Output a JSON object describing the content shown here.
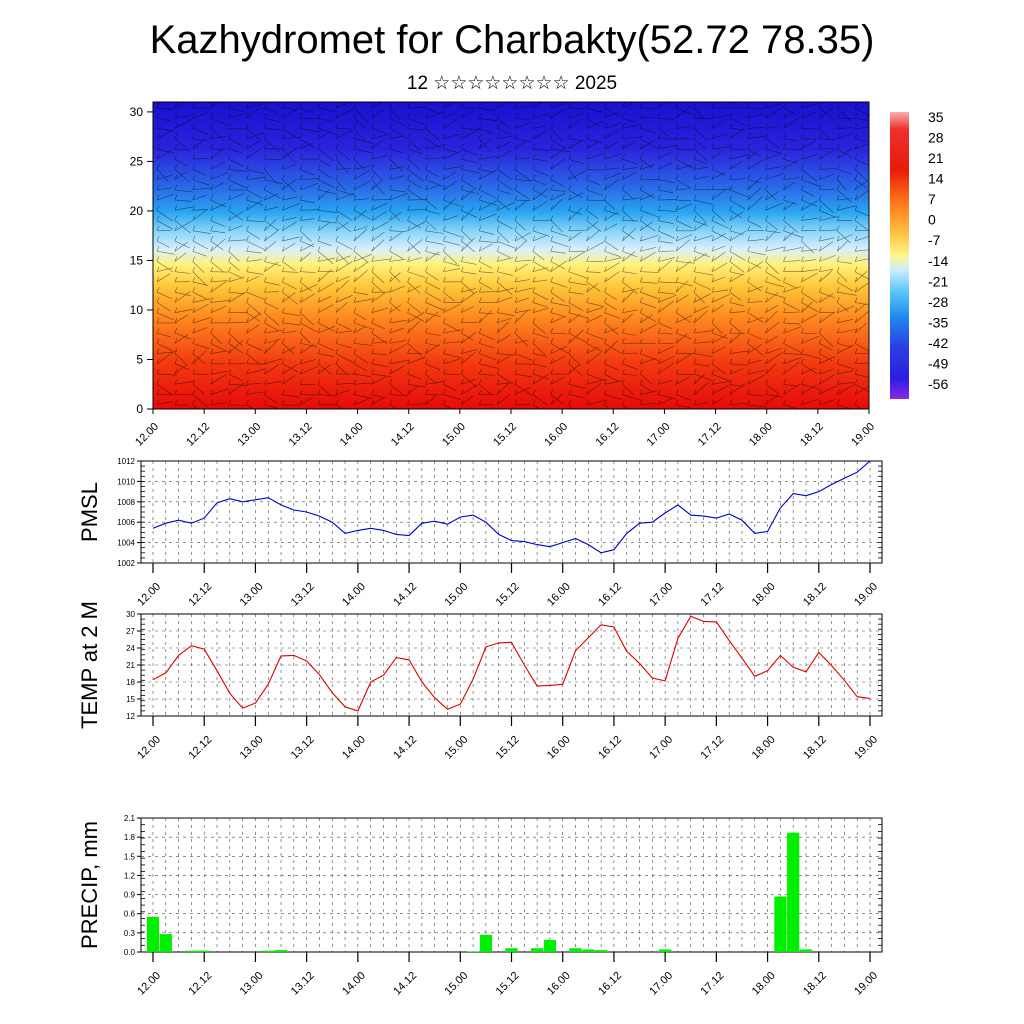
{
  "title": "Kazhydromet for Charbakty(52.72 78.35)",
  "subtitle": "12 ☆☆☆☆☆☆☆☆ 2025",
  "time_labels": [
    "12.00",
    "12.12",
    "13.00",
    "13.12",
    "14.00",
    "14.12",
    "15.00",
    "15.12",
    "16.00",
    "16.12",
    "17.00",
    "17.12",
    "18.00",
    "18.12",
    "19.00"
  ],
  "colors": {
    "pmsl_line": "#0000cc",
    "temp_line": "#dd0000",
    "precip_bar": "#00ee00",
    "cross_section_cold": "#2a10d8",
    "cross_section_warm": "#e8100a"
  },
  "chart_data": [
    {
      "type": "heatmap",
      "name": "cross-section",
      "y_ticks": [
        0,
        5,
        10,
        15,
        20,
        25,
        30
      ],
      "ylim": [
        0,
        31
      ],
      "colorbar_labels": [
        "35",
        "28",
        "21",
        "14",
        "7",
        "0",
        "-7",
        "-14",
        "-21",
        "-28",
        "-35",
        "-42",
        "-49",
        "-56"
      ],
      "note_overlay": "wind barbs"
    },
    {
      "type": "line",
      "name": "pmsl",
      "ylabel": "PMSL",
      "ylim": [
        1002,
        1012
      ],
      "y_ticks": [
        "1002",
        "1004",
        "1006",
        "1008",
        "1010",
        "1012"
      ],
      "x": [
        0,
        1,
        2,
        3,
        4,
        5,
        6,
        7,
        8,
        9,
        10,
        11,
        12,
        13,
        14,
        15,
        16,
        17,
        18,
        19,
        20,
        21,
        22,
        23,
        24,
        25,
        26,
        27,
        28,
        29,
        30,
        31,
        32,
        33,
        34,
        35,
        36,
        37,
        38,
        39,
        40,
        41,
        42,
        43,
        44,
        45,
        46,
        47,
        48,
        49,
        50,
        51,
        52,
        53,
        54,
        55,
        56
      ],
      "values": [
        1005.4,
        1005.9,
        1006.2,
        1005.9,
        1006.4,
        1007.9,
        1008.3,
        1008.0,
        1008.2,
        1008.4,
        1007.7,
        1007.2,
        1007.0,
        1006.6,
        1006.0,
        1004.9,
        1005.2,
        1005.4,
        1005.2,
        1004.8,
        1004.7,
        1005.9,
        1006.1,
        1005.8,
        1006.5,
        1006.7,
        1006.0,
        1004.8,
        1004.2,
        1004.1,
        1003.8,
        1003.6,
        1004.0,
        1004.4,
        1003.8,
        1003.0,
        1003.3,
        1004.9,
        1005.9,
        1006.0,
        1006.9,
        1007.7,
        1006.7,
        1006.6,
        1006.4,
        1006.8,
        1006.2,
        1004.9,
        1005.1,
        1007.4,
        1008.8,
        1008.6,
        1009.0,
        1009.7,
        1010.3,
        1010.9,
        1012.0
      ]
    },
    {
      "type": "line",
      "name": "temperature",
      "ylabel": "TEMP at 2 M",
      "ylim": [
        12,
        30
      ],
      "y_ticks": [
        "12",
        "15",
        "18",
        "21",
        "24",
        "27",
        "30"
      ],
      "x": [
        0,
        1,
        2,
        3,
        4,
        5,
        6,
        7,
        8,
        9,
        10,
        11,
        12,
        13,
        14,
        15,
        16,
        17,
        18,
        19,
        20,
        21,
        22,
        23,
        24,
        25,
        26,
        27,
        28,
        29,
        30,
        31,
        32,
        33,
        34,
        35,
        36,
        37,
        38,
        39,
        40,
        41,
        42,
        43,
        44,
        45,
        46,
        47,
        48,
        49,
        50,
        51,
        52,
        53,
        54,
        55,
        56
      ],
      "values": [
        18.4,
        19.6,
        22.7,
        24.4,
        23.8,
        20.0,
        16.0,
        13.4,
        14.3,
        17.6,
        22.6,
        22.7,
        21.7,
        19.3,
        16.1,
        13.6,
        12.9,
        18.0,
        19.2,
        22.3,
        21.9,
        18.0,
        15.2,
        13.2,
        14.1,
        18.5,
        24.2,
        24.9,
        25.0,
        21.0,
        17.3,
        17.4,
        17.6,
        23.5,
        25.8,
        28.1,
        27.7,
        23.4,
        21.3,
        18.7,
        18.2,
        25.7,
        29.6,
        28.7,
        28.6,
        25.3,
        22.2,
        19.0,
        20.0,
        22.7,
        20.6,
        19.8,
        23.2,
        20.9,
        18.3,
        15.4,
        15.1
      ]
    },
    {
      "type": "bar",
      "name": "precipitation",
      "ylabel": "PRECIP, mm",
      "ylim": [
        0,
        2.1
      ],
      "y_ticks": [
        "0.0",
        "0.3",
        "0.6",
        "0.9",
        "1.2",
        "1.5",
        "1.8",
        "2.1"
      ],
      "x": [
        0,
        1,
        2,
        3,
        4,
        5,
        6,
        7,
        8,
        9,
        10,
        11,
        12,
        13,
        14,
        15,
        16,
        17,
        18,
        19,
        20,
        21,
        22,
        23,
        24,
        25,
        26,
        27,
        28,
        29,
        30,
        31,
        32,
        33,
        34,
        35,
        36,
        37,
        38,
        39,
        40,
        41,
        42,
        43,
        44,
        45,
        46,
        47,
        48,
        49,
        50,
        51,
        52,
        53,
        54,
        55,
        56
      ],
      "values": [
        0.55,
        0.28,
        0,
        0.02,
        0.02,
        0,
        0,
        0,
        0,
        0.02,
        0.03,
        0,
        0,
        0,
        0,
        0,
        0,
        0,
        0,
        0,
        0,
        0,
        0,
        0,
        0,
        0.01,
        0.27,
        0,
        0.06,
        0,
        0.06,
        0.19,
        0,
        0.06,
        0.04,
        0.03,
        0,
        0,
        0,
        0,
        0.04,
        0,
        0,
        0,
        0,
        0,
        0,
        0,
        0,
        0.87,
        1.87,
        0.04,
        0,
        0,
        0,
        0,
        0
      ]
    }
  ]
}
